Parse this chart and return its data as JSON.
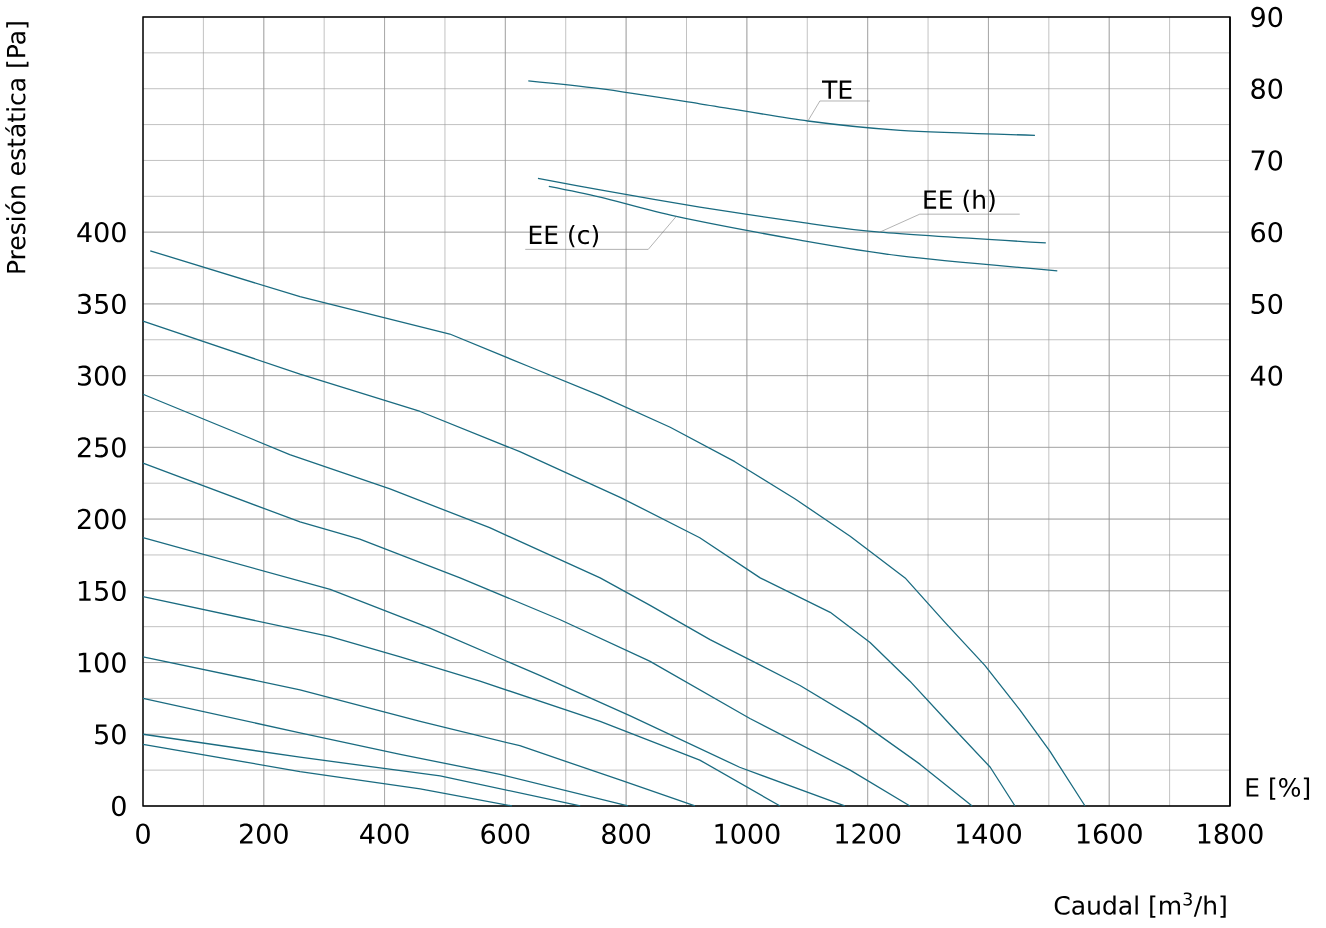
{
  "chart_data": {
    "type": "line",
    "xlabel": "Caudal [m$^{3}$/h]",
    "ylabel": "Presión estática [Pa]",
    "y2label": "E [%]",
    "xlim": [
      0,
      1800
    ],
    "xticks": [
      0,
      200,
      400,
      600,
      800,
      1000,
      1200,
      1400,
      1600,
      1800
    ],
    "ylim": [
      0,
      550
    ],
    "yticks": [
      0,
      50,
      100,
      150,
      200,
      250,
      300,
      350,
      400
    ],
    "y2lim": [
      -20,
      90
    ],
    "y2ticks": [
      40,
      50,
      60,
      70,
      80,
      90
    ],
    "grid": true,
    "series": [
      {
        "color": "#1a6b80",
        "x": [
          12,
          260,
          508,
          641,
          757,
          873,
          980,
          1080,
          1171,
          1262,
          1328,
          1394,
          1452,
          1502,
          1560
        ],
        "values": [
          387,
          355,
          329,
          306,
          286,
          264,
          240,
          214,
          188,
          159,
          128,
          98,
          67,
          38,
          0
        ]
      },
      {
        "color": "#1a6b80",
        "x": [
          0,
          260,
          459,
          624,
          791,
          922,
          1022,
          1138,
          1204,
          1270,
          1336,
          1403,
          1444
        ],
        "values": [
          338,
          301,
          275,
          247,
          215,
          187,
          159,
          135,
          114,
          87,
          57,
          27,
          0
        ]
      },
      {
        "color": "#1a6b80",
        "x": [
          0,
          243,
          409,
          574,
          757,
          839,
          939,
          1088,
          1187,
          1287,
          1373
        ],
        "values": [
          287,
          245,
          221,
          194,
          159,
          140,
          116,
          84,
          59,
          29,
          0
        ]
      },
      {
        "color": "#1a6b80",
        "x": [
          0,
          260,
          359,
          525,
          690,
          839,
          1005,
          1171,
          1270
        ],
        "values": [
          239,
          198,
          186,
          159,
          130,
          101,
          61,
          25,
          0
        ]
      },
      {
        "color": "#1a6b80",
        "x": [
          0,
          310,
          475,
          657,
          806,
          988,
          1162
        ],
        "values": [
          187,
          151,
          124,
          91,
          63,
          27,
          0
        ]
      },
      {
        "color": "#1a6b80",
        "x": [
          0,
          310,
          426,
          558,
          757,
          922,
          1055
        ],
        "values": [
          146,
          118,
          104,
          87,
          59,
          32,
          0
        ]
      },
      {
        "color": "#1a6b80",
        "x": [
          0,
          260,
          459,
          624,
          791,
          914
        ],
        "values": [
          104,
          81,
          59,
          42,
          18,
          0
        ]
      },
      {
        "color": "#1a6b80",
        "x": [
          0,
          260,
          426,
          591,
          803
        ],
        "values": [
          75,
          51,
          36,
          22,
          0
        ]
      },
      {
        "color": "#1a6b80",
        "x": [
          0,
          260,
          492,
          724
        ],
        "values": [
          50,
          34,
          21,
          0
        ]
      },
      {
        "color": "#1a6b80",
        "x": [
          0,
          260,
          459,
          611
        ],
        "values": [
          43,
          24,
          12,
          0
        ]
      },
      {
        "name": "TE",
        "axis": "y2",
        "color": "#1a6b80",
        "x": [
          638,
          757,
          922,
          1101,
          1254,
          1477
        ],
        "values": [
          81.1,
          80.0,
          77.9,
          75.5,
          74.2,
          73.5
        ]
      },
      {
        "name": "EE (h)",
        "axis": "y2",
        "color": "#1a6b80",
        "x": [
          654,
          757,
          922,
          1088,
          1220,
          1495
        ],
        "values": [
          67.5,
          65.9,
          63.5,
          61.4,
          60.0,
          58.5
        ]
      },
      {
        "name": "EE (c)",
        "axis": "y2",
        "color": "#1a6b80",
        "x": [
          672,
          757,
          883,
          1088,
          1254,
          1514
        ],
        "values": [
          66.4,
          64.9,
          62.2,
          58.9,
          56.7,
          54.6
        ]
      }
    ]
  }
}
